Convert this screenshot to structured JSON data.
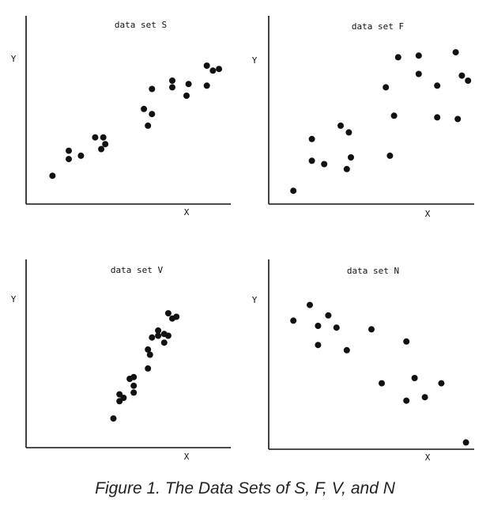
{
  "caption": "Figure 1. The Data Sets of S, F, V, and N",
  "chart_data": [
    {
      "type": "scatter",
      "title": "data set S",
      "xlabel": "X",
      "ylabel": "Y",
      "xlim": [
        0,
        10
      ],
      "ylim": [
        0,
        10
      ],
      "grid": false,
      "points": [
        [
          1.3,
          1.6
        ],
        [
          2.1,
          2.6
        ],
        [
          2.1,
          3.1
        ],
        [
          2.7,
          2.8
        ],
        [
          3.4,
          3.9
        ],
        [
          3.8,
          3.9
        ],
        [
          3.7,
          3.2
        ],
        [
          3.9,
          3.5
        ],
        [
          5.8,
          5.6
        ],
        [
          6.0,
          4.6
        ],
        [
          6.2,
          5.3
        ],
        [
          6.2,
          6.8
        ],
        [
          7.2,
          6.9
        ],
        [
          7.2,
          7.3
        ],
        [
          7.9,
          6.4
        ],
        [
          8.0,
          7.1
        ],
        [
          8.9,
          7.0
        ],
        [
          8.9,
          8.2
        ],
        [
          9.2,
          7.9
        ],
        [
          9.5,
          8.0
        ]
      ]
    },
    {
      "type": "scatter",
      "title": "data set F",
      "xlabel": "X",
      "ylabel": "Y",
      "xlim": [
        0,
        10
      ],
      "ylim": [
        0,
        10
      ],
      "grid": false,
      "points": [
        [
          1.2,
          0.7
        ],
        [
          2.1,
          3.8
        ],
        [
          2.1,
          2.5
        ],
        [
          2.7,
          2.3
        ],
        [
          3.5,
          4.6
        ],
        [
          3.8,
          2.0
        ],
        [
          3.9,
          4.2
        ],
        [
          4.0,
          2.7
        ],
        [
          5.7,
          6.9
        ],
        [
          5.9,
          2.8
        ],
        [
          6.1,
          5.2
        ],
        [
          6.3,
          8.7
        ],
        [
          7.3,
          8.8
        ],
        [
          7.3,
          7.7
        ],
        [
          8.2,
          7.0
        ],
        [
          8.2,
          5.1
        ],
        [
          9.1,
          9.0
        ],
        [
          9.2,
          5.0
        ],
        [
          9.4,
          7.6
        ],
        [
          9.7,
          7.3
        ]
      ]
    },
    {
      "type": "scatter",
      "title": "data set V",
      "xlabel": "X",
      "ylabel": "Y",
      "xlim": [
        0,
        10
      ],
      "ylim": [
        0,
        10
      ],
      "grid": false,
      "points": [
        [
          4.3,
          1.6
        ],
        [
          4.6,
          2.6
        ],
        [
          4.6,
          3.0
        ],
        [
          4.8,
          2.8
        ],
        [
          5.1,
          3.9
        ],
        [
          5.3,
          3.1
        ],
        [
          5.3,
          3.5
        ],
        [
          5.3,
          4.0
        ],
        [
          6.0,
          4.5
        ],
        [
          6.0,
          5.6
        ],
        [
          6.1,
          5.3
        ],
        [
          6.2,
          6.3
        ],
        [
          6.5,
          6.4
        ],
        [
          6.5,
          6.7
        ],
        [
          6.8,
          6.0
        ],
        [
          6.8,
          6.5
        ],
        [
          7.0,
          7.7
        ],
        [
          7.0,
          6.4
        ],
        [
          7.2,
          7.4
        ],
        [
          7.4,
          7.5
        ]
      ]
    },
    {
      "type": "scatter",
      "title": "data set N",
      "xlabel": "X",
      "ylabel": "Y",
      "xlim": [
        0,
        10
      ],
      "ylim": [
        0,
        10
      ],
      "grid": false,
      "points": [
        [
          1.2,
          7.3
        ],
        [
          2.0,
          8.2
        ],
        [
          2.4,
          5.9
        ],
        [
          2.4,
          7.0
        ],
        [
          2.9,
          7.6
        ],
        [
          3.3,
          6.9
        ],
        [
          3.8,
          5.6
        ],
        [
          5.0,
          6.8
        ],
        [
          5.5,
          3.7
        ],
        [
          6.7,
          2.7
        ],
        [
          6.7,
          6.1
        ],
        [
          7.1,
          4.0
        ],
        [
          7.6,
          2.9
        ],
        [
          8.4,
          3.7
        ],
        [
          9.6,
          0.3
        ]
      ]
    }
  ]
}
